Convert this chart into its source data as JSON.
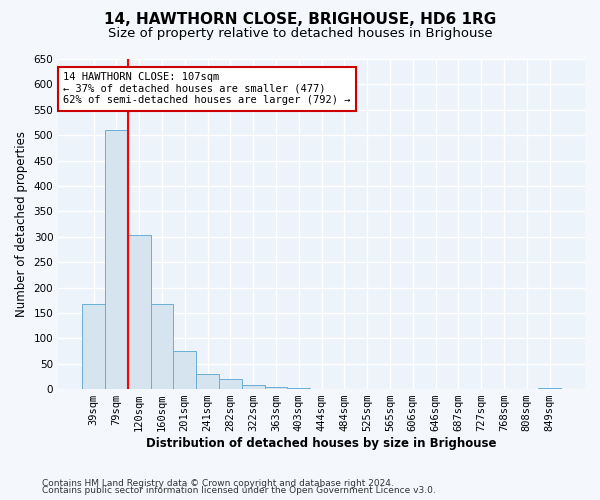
{
  "title": "14, HAWTHORN CLOSE, BRIGHOUSE, HD6 1RG",
  "subtitle": "Size of property relative to detached houses in Brighouse",
  "xlabel": "Distribution of detached houses by size in Brighouse",
  "ylabel": "Number of detached properties",
  "bar_categories": [
    "39sqm",
    "79sqm",
    "120sqm",
    "160sqm",
    "201sqm",
    "241sqm",
    "282sqm",
    "322sqm",
    "363sqm",
    "403sqm",
    "444sqm",
    "484sqm",
    "525sqm",
    "565sqm",
    "606sqm",
    "646sqm",
    "687sqm",
    "727sqm",
    "768sqm",
    "808sqm",
    "849sqm"
  ],
  "bar_values": [
    168,
    510,
    303,
    168,
    75,
    30,
    20,
    8,
    5,
    2,
    1,
    1,
    1,
    0,
    0,
    0,
    0,
    0,
    0,
    0,
    3
  ],
  "bar_color": "#d6e4f0",
  "bar_edge_color": "#6aafd6",
  "red_line_x": 1.5,
  "annotation_line1": "14 HAWTHORN CLOSE: 107sqm",
  "annotation_line2": "← 37% of detached houses are smaller (477)",
  "annotation_line3": "62% of semi-detached houses are larger (792) →",
  "annotation_box_facecolor": "#ffffff",
  "annotation_box_edgecolor": "#cc0000",
  "ylim": [
    0,
    650
  ],
  "yticks": [
    0,
    50,
    100,
    150,
    200,
    250,
    300,
    350,
    400,
    450,
    500,
    550,
    600,
    650
  ],
  "footer1": "Contains HM Land Registry data © Crown copyright and database right 2024.",
  "footer2": "Contains public sector information licensed under the Open Government Licence v3.0.",
  "bg_color": "#f4f8fd",
  "plot_bg_color": "#edf3fa",
  "grid_color": "#ffffff",
  "title_fontsize": 11,
  "subtitle_fontsize": 9.5,
  "axis_label_fontsize": 8.5,
  "tick_fontsize": 7.5,
  "annotation_fontsize": 7.5,
  "footer_fontsize": 6.5
}
